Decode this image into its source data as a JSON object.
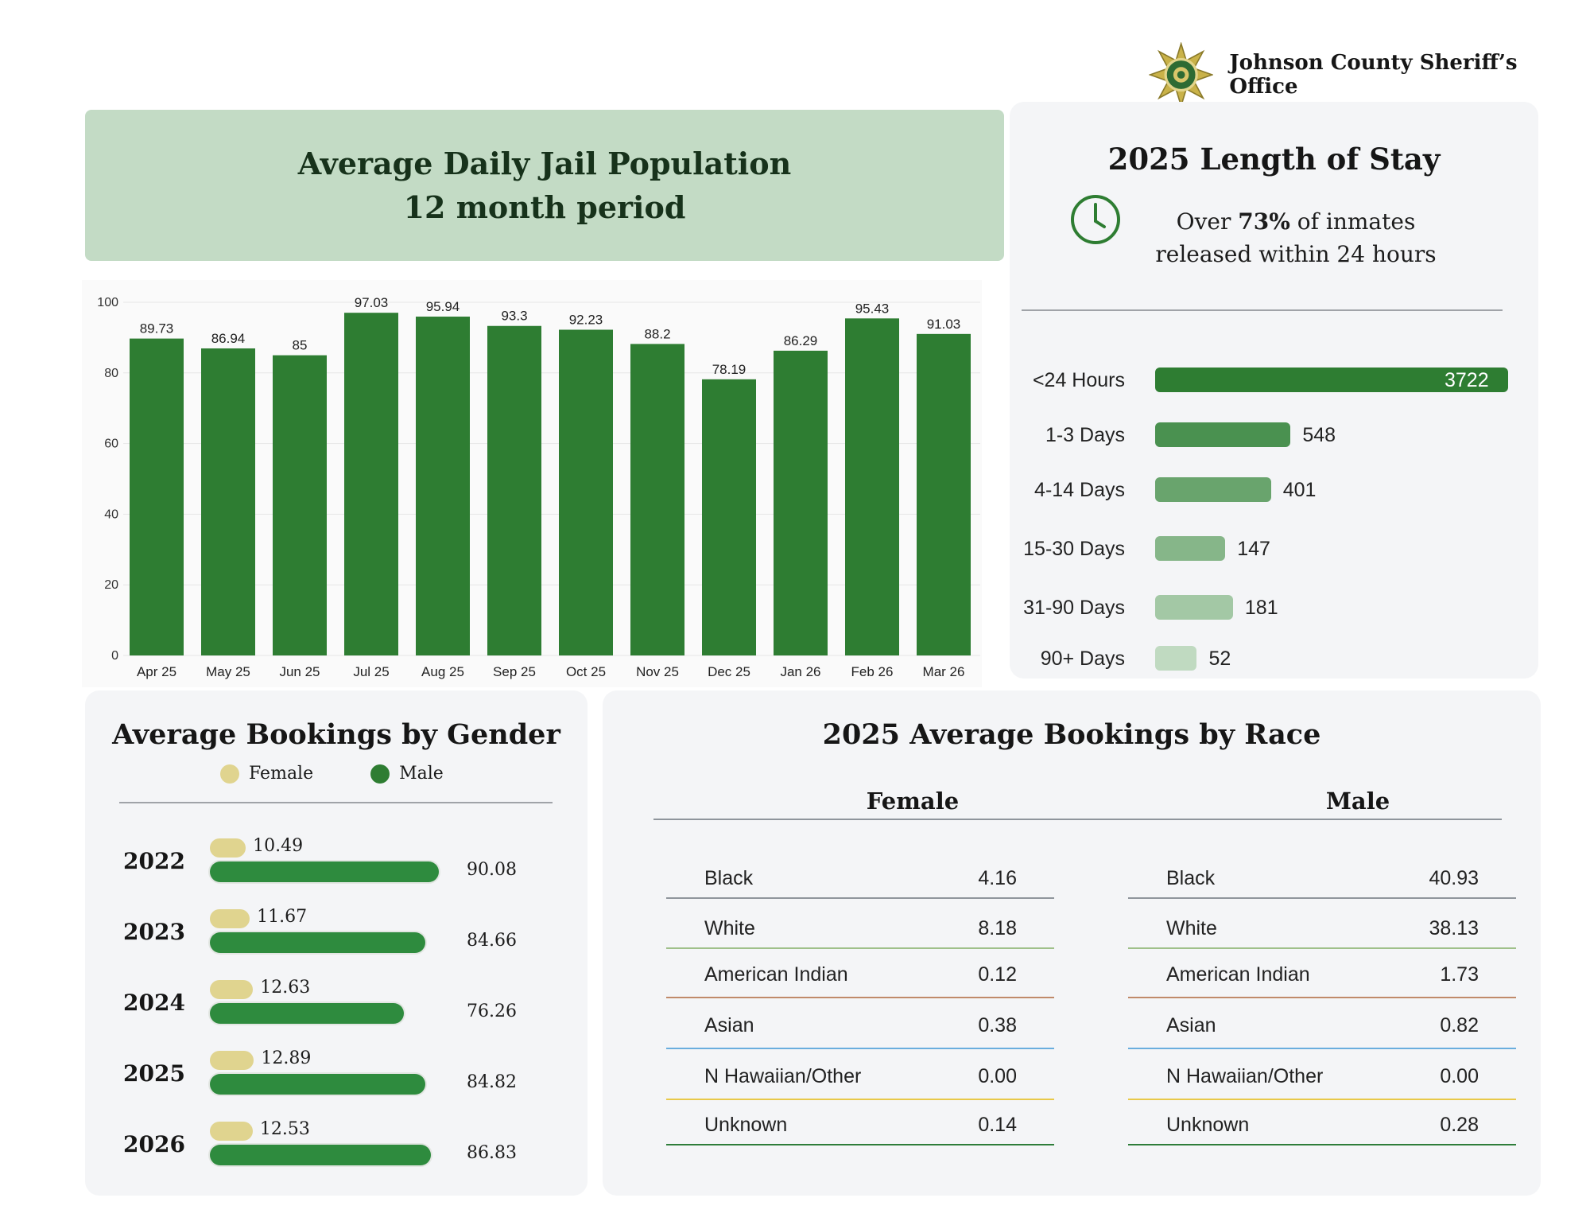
{
  "header": {
    "organization": "Johnson County Sheriff’s Office",
    "badge_icon": "sheriff-star-badge"
  },
  "adp": {
    "title_line1": "Average Daily Jail Population",
    "title_line2": "12 month period"
  },
  "los": {
    "title": "2025 Length of Stay",
    "icon": "clock-icon",
    "subtitle_pre": "Over ",
    "subtitle_bold": "73%",
    "subtitle_post": " of inmates",
    "subtitle_line2": "released within 24 hours"
  },
  "gender": {
    "title": "Average Bookings by Gender",
    "legend_female": "Female",
    "legend_male": "Male"
  },
  "race": {
    "title": "2025 Average Bookings by Race",
    "female_header": "Female",
    "male_header": "Male",
    "female_rows": [
      {
        "name": "Black",
        "value": "4.16"
      },
      {
        "name": "White",
        "value": "8.18"
      },
      {
        "name": "American Indian",
        "value": "0.12"
      },
      {
        "name": "Asian",
        "value": "0.38"
      },
      {
        "name": "N Hawaiian/Other",
        "value": "0.00"
      },
      {
        "name": "Unknown",
        "value": "0.14"
      }
    ],
    "male_rows": [
      {
        "name": "Black",
        "value": "40.93"
      },
      {
        "name": "White",
        "value": "38.13"
      },
      {
        "name": "American Indian",
        "value": "1.73"
      },
      {
        "name": "Asian",
        "value": "0.82"
      },
      {
        "name": "N Hawaiian/Other",
        "value": "0.00"
      },
      {
        "name": "Unknown",
        "value": "0.28"
      }
    ],
    "line_colors": [
      "#8f959c",
      "#9fc08a",
      "#c08a6a",
      "#6aaede",
      "#e8c94a",
      "#2e7d3a"
    ]
  },
  "colors": {
    "primary_green": "#2e7d32",
    "female_tan": "#e0d48f",
    "header_band": "#c3dbc5"
  },
  "chart_data": [
    {
      "type": "bar",
      "categories": [
        "Apr 25",
        "May 25",
        "Jun 25",
        "Jul 25",
        "Aug 25",
        "Sep 25",
        "Oct 25",
        "Nov 25",
        "Dec 25",
        "Jan 26",
        "Feb 26",
        "Mar 26"
      ],
      "values": [
        89.73,
        86.94,
        85,
        97.03,
        95.94,
        93.3,
        92.23,
        88.2,
        78.19,
        86.29,
        95.43,
        91.03
      ],
      "ylim": [
        0,
        100
      ],
      "yticks": [
        0,
        20,
        40,
        60,
        80,
        100
      ],
      "grid": true,
      "color": "#2e7d32"
    },
    {
      "type": "bar",
      "orientation": "horizontal",
      "categories": [
        "<24 Hours",
        "1-3 Days",
        "4-14 Days",
        "15-30 Days",
        "31-90 Days",
        "90+ Days"
      ],
      "values": [
        3722,
        548,
        401,
        147,
        181,
        52
      ],
      "colors": [
        "#2e7d32",
        "#4a9150",
        "#69a46d",
        "#86b689",
        "#a3c8a5",
        "#c0dac1"
      ]
    },
    {
      "type": "bar",
      "orientation": "horizontal",
      "categories": [
        "2022",
        "2023",
        "2024",
        "2025",
        "2026"
      ],
      "series": [
        {
          "name": "Female",
          "values": [
            10.49,
            11.67,
            12.63,
            12.89,
            12.53
          ]
        },
        {
          "name": "Male",
          "values": [
            90.08,
            84.66,
            76.26,
            84.82,
            86.83
          ]
        }
      ]
    }
  ]
}
